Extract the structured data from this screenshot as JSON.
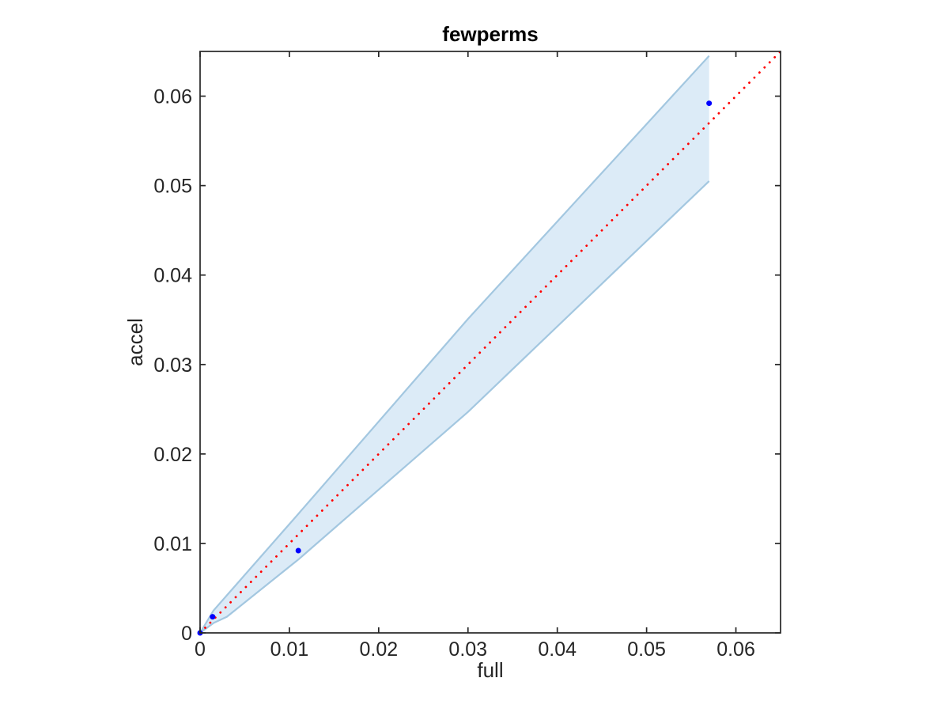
{
  "chart_data": {
    "type": "scatter",
    "title": "fewperms",
    "xlabel": "full",
    "ylabel": "accel",
    "xlim": [
      0,
      0.065
    ],
    "ylim": [
      0,
      0.065
    ],
    "xticks": [
      0,
      0.01,
      0.02,
      0.03,
      0.04,
      0.05,
      0.06
    ],
    "yticks": [
      0,
      0.01,
      0.02,
      0.03,
      0.04,
      0.05,
      0.06
    ],
    "grid": false,
    "legend": null,
    "background": "#ffffff",
    "axis_color": "#262626",
    "series": [
      {
        "name": "data-points",
        "type": "scatter",
        "marker": "filled-circle",
        "color": "#0000ff",
        "xy": [
          [
            0,
            0
          ],
          [
            0.0014,
            0.0018
          ],
          [
            0.011,
            0.0092
          ],
          [
            0.057,
            0.0592
          ]
        ]
      },
      {
        "name": "identity-line",
        "type": "line",
        "style": "dotted",
        "color": "#ff0000",
        "x": [
          0,
          0.065
        ],
        "y": [
          0,
          0.065
        ]
      },
      {
        "name": "confidence-band",
        "type": "band",
        "fill": "#dcebf7",
        "edge": "#a3c7e0",
        "x": [
          0,
          0.0015,
          0.003,
          0.011,
          0.03,
          0.057
        ],
        "upper": [
          0,
          0.0025,
          0.0042,
          0.0133,
          0.0351,
          0.0645
        ],
        "lower": [
          0,
          0.0011,
          0.0018,
          0.0082,
          0.0247,
          0.0505
        ]
      }
    ]
  }
}
